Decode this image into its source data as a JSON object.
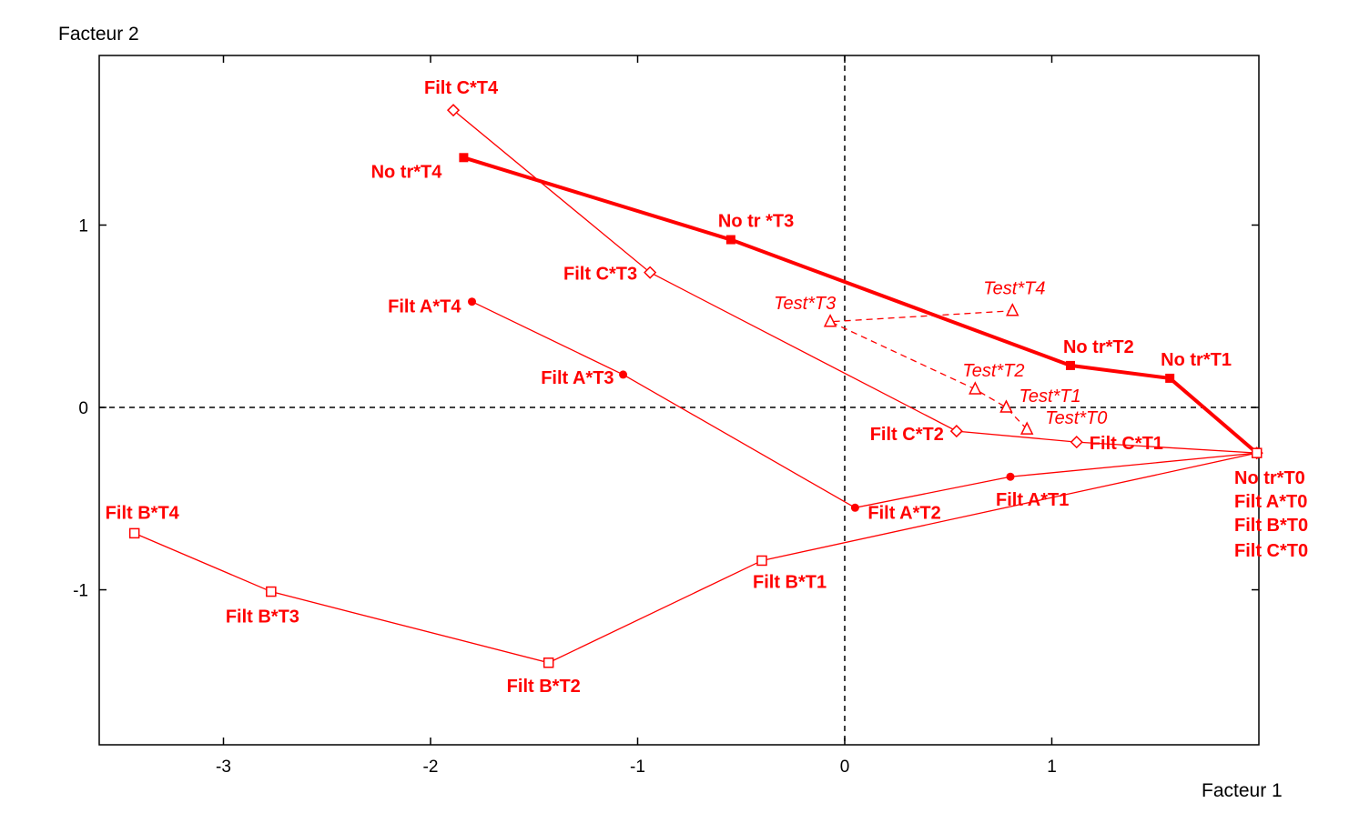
{
  "chart_data": {
    "type": "scatter",
    "xlabel": "Facteur 1",
    "ylabel": "Facteur 2",
    "xlim": [
      -3.6,
      2.0
    ],
    "ylim": [
      -1.85,
      1.93
    ],
    "x_ticks": [
      -3,
      -2,
      -1,
      0,
      1
    ],
    "y_ticks": [
      -1,
      0,
      1
    ],
    "grid": false,
    "reference_lines": {
      "x": 0,
      "y": 0,
      "style": "dashed"
    },
    "color": "#ff0000",
    "series": [
      {
        "id": "no-tr",
        "marker": "filled-square",
        "line": "thick",
        "points": [
          {
            "x": 1.99,
            "y": -0.25,
            "label": ""
          },
          {
            "x": 1.57,
            "y": 0.16,
            "label": "No tr*T1"
          },
          {
            "x": 1.09,
            "y": 0.23,
            "label": "No tr*T2"
          },
          {
            "x": -0.55,
            "y": 0.92,
            "label": "No tr *T3"
          },
          {
            "x": -1.84,
            "y": 1.37,
            "label": "No tr*T4"
          }
        ]
      },
      {
        "id": "filt-c",
        "marker": "open-diamond",
        "line": "thin",
        "points": [
          {
            "x": 1.99,
            "y": -0.25,
            "label": ""
          },
          {
            "x": 1.12,
            "y": -0.19,
            "label": "Filt C*T1"
          },
          {
            "x": 0.54,
            "y": -0.13,
            "label": "Filt C*T2"
          },
          {
            "x": -0.94,
            "y": 0.74,
            "label": "Filt C*T3"
          },
          {
            "x": -1.89,
            "y": 1.63,
            "label": "Filt C*T4"
          }
        ]
      },
      {
        "id": "filt-a",
        "marker": "filled-circle",
        "line": "thin",
        "points": [
          {
            "x": 1.99,
            "y": -0.25,
            "label": ""
          },
          {
            "x": 0.8,
            "y": -0.38,
            "label": "Filt A*T1"
          },
          {
            "x": 0.05,
            "y": -0.55,
            "label": "Filt A*T2"
          },
          {
            "x": -1.07,
            "y": 0.18,
            "label": "Filt A*T3"
          },
          {
            "x": -1.8,
            "y": 0.58,
            "label": "Filt A*T4"
          }
        ]
      },
      {
        "id": "filt-b",
        "marker": "open-square",
        "line": "thin",
        "points": [
          {
            "x": 1.99,
            "y": -0.25,
            "label": ""
          },
          {
            "x": -0.4,
            "y": -0.84,
            "label": "Filt B*T1"
          },
          {
            "x": -1.43,
            "y": -1.4,
            "label": "Filt B*T2"
          },
          {
            "x": -2.77,
            "y": -1.01,
            "label": "Filt B*T3"
          },
          {
            "x": -3.43,
            "y": -0.69,
            "label": "Filt B*T4"
          }
        ]
      },
      {
        "id": "test",
        "marker": "open-triangle",
        "line": "dashed",
        "label_style": "italic",
        "points": [
          {
            "x": 0.88,
            "y": -0.12,
            "label": "Test*T0"
          },
          {
            "x": 0.78,
            "y": 0.0,
            "label": "Test*T1"
          },
          {
            "x": 0.63,
            "y": 0.1,
            "label": "Test*T2"
          },
          {
            "x": -0.07,
            "y": 0.47,
            "label": "Test*T3"
          },
          {
            "x": 0.81,
            "y": 0.53,
            "label": "Test*T4"
          }
        ]
      }
    ],
    "origin_labels": [
      "No tr*T0",
      "Filt A*T0",
      "Filt B*T0",
      "Filt C*T0"
    ]
  }
}
